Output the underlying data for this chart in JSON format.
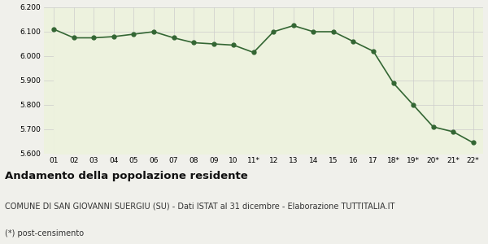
{
  "x_labels": [
    "01",
    "02",
    "03",
    "04",
    "05",
    "06",
    "07",
    "08",
    "09",
    "10",
    "11*",
    "12",
    "13",
    "14",
    "15",
    "16",
    "17",
    "18*",
    "19*",
    "20*",
    "21*",
    "22*"
  ],
  "y_values": [
    6110,
    6075,
    6075,
    6080,
    6090,
    6100,
    6075,
    6055,
    6050,
    6045,
    6015,
    6100,
    6125,
    6100,
    6100,
    6060,
    6020,
    5890,
    5800,
    5710,
    5690,
    5645
  ],
  "line_color": "#336633",
  "fill_color": "#edf2de",
  "marker_color": "#336633",
  "background_color": "#f0f0eb",
  "grid_color": "#cccccc",
  "ylim_min": 5600,
  "ylim_max": 6200,
  "ytick_interval": 100,
  "title": "Andamento della popolazione residente",
  "subtitle": "COMUNE DI SAN GIOVANNI SUERGIU (SU) - Dati ISTAT al 31 dicembre - Elaborazione TUTTITALIA.IT",
  "footnote": "(*) post-censimento",
  "title_fontsize": 9.5,
  "subtitle_fontsize": 7,
  "footnote_fontsize": 7
}
